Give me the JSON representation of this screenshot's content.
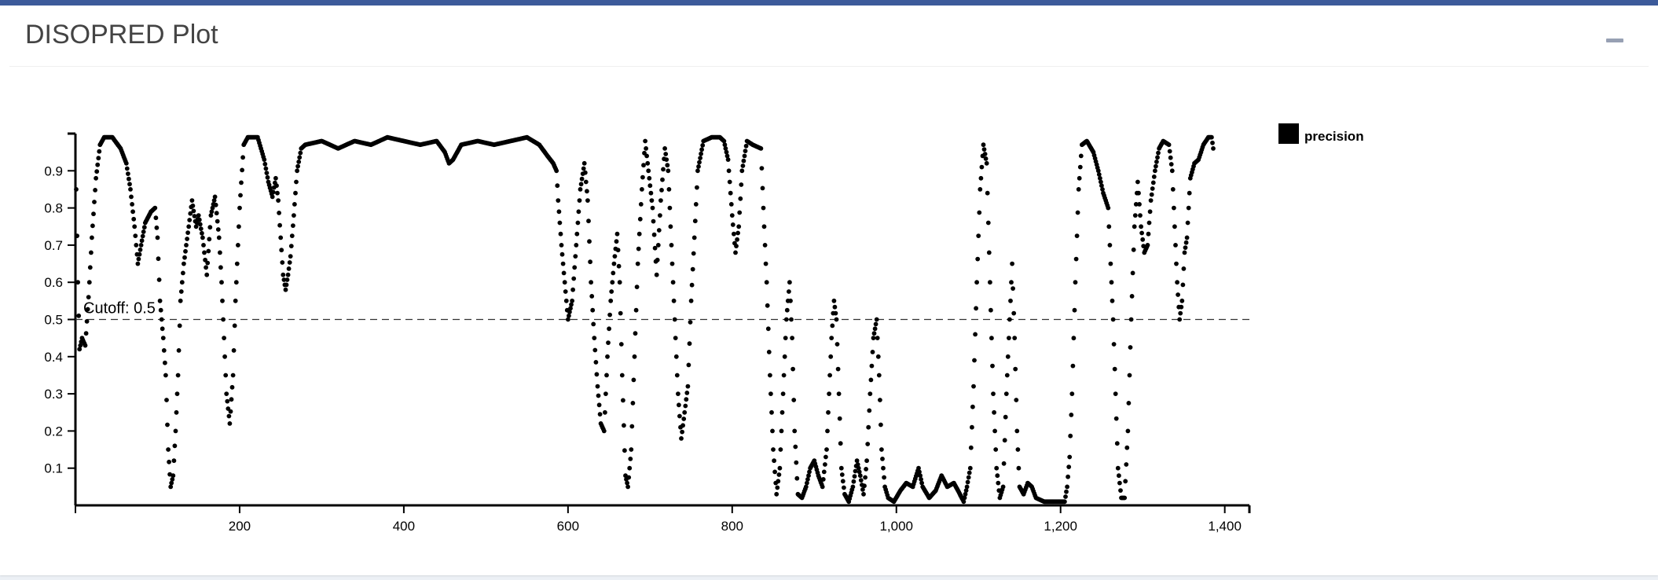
{
  "panel": {
    "title": "DISOPRED Plot",
    "collapse_icon": "minus-icon"
  },
  "chart_data": {
    "type": "scatter",
    "title": "",
    "xlabel": "",
    "ylabel": "",
    "xlim": [
      0,
      1430
    ],
    "ylim": [
      0,
      1
    ],
    "xticks": [
      0,
      200,
      400,
      600,
      800,
      1000,
      1200,
      1400
    ],
    "xtick_labels": [
      "",
      "200",
      "400",
      "600",
      "800",
      "1,000",
      "1,200",
      "1,400"
    ],
    "yticks": [
      0.1,
      0.2,
      0.3,
      0.4,
      0.5,
      0.6,
      0.7,
      0.8,
      0.9
    ],
    "ytick_labels": [
      "0.1",
      "0.2",
      "0.3",
      "0.4",
      "0.5",
      "0.6",
      "0.7",
      "0.8",
      "0.9"
    ],
    "cutoff": {
      "value": 0.5,
      "label": "Cutoff: 0.5"
    },
    "legend": {
      "position": "top-right",
      "entries": [
        {
          "name": "precision",
          "color": "#000000"
        }
      ]
    },
    "grid": false,
    "series": [
      {
        "name": "precision",
        "color": "#000000",
        "keypoints": [
          [
            1,
            0.85
          ],
          [
            3,
            0.6
          ],
          [
            5,
            0.42
          ],
          [
            8,
            0.45
          ],
          [
            12,
            0.43
          ],
          [
            16,
            0.56
          ],
          [
            20,
            0.72
          ],
          [
            25,
            0.88
          ],
          [
            30,
            0.97
          ],
          [
            35,
            0.99
          ],
          [
            45,
            0.99
          ],
          [
            55,
            0.96
          ],
          [
            62,
            0.92
          ],
          [
            67,
            0.85
          ],
          [
            72,
            0.75
          ],
          [
            76,
            0.65
          ],
          [
            80,
            0.7
          ],
          [
            85,
            0.76
          ],
          [
            92,
            0.79
          ],
          [
            97,
            0.8
          ],
          [
            100,
            0.72
          ],
          [
            103,
            0.55
          ],
          [
            107,
            0.45
          ],
          [
            110,
            0.35
          ],
          [
            113,
            0.15
          ],
          [
            116,
            0.05
          ],
          [
            119,
            0.08
          ],
          [
            122,
            0.2
          ],
          [
            125,
            0.35
          ],
          [
            128,
            0.55
          ],
          [
            132,
            0.65
          ],
          [
            138,
            0.75
          ],
          [
            142,
            0.82
          ],
          [
            147,
            0.75
          ],
          [
            150,
            0.78
          ],
          [
            155,
            0.72
          ],
          [
            160,
            0.62
          ],
          [
            165,
            0.78
          ],
          [
            170,
            0.83
          ],
          [
            175,
            0.72
          ],
          [
            178,
            0.6
          ],
          [
            181,
            0.45
          ],
          [
            184,
            0.3
          ],
          [
            188,
            0.22
          ],
          [
            192,
            0.35
          ],
          [
            195,
            0.55
          ],
          [
            200,
            0.8
          ],
          [
            205,
            0.97
          ],
          [
            210,
            0.99
          ],
          [
            222,
            0.99
          ],
          [
            230,
            0.93
          ],
          [
            235,
            0.87
          ],
          [
            240,
            0.83
          ],
          [
            244,
            0.88
          ],
          [
            247,
            0.82
          ],
          [
            250,
            0.72
          ],
          [
            253,
            0.62
          ],
          [
            256,
            0.58
          ],
          [
            259,
            0.62
          ],
          [
            262,
            0.67
          ],
          [
            266,
            0.78
          ],
          [
            270,
            0.9
          ],
          [
            275,
            0.96
          ],
          [
            280,
            0.97
          ],
          [
            300,
            0.98
          ],
          [
            320,
            0.96
          ],
          [
            340,
            0.98
          ],
          [
            360,
            0.97
          ],
          [
            380,
            0.99
          ],
          [
            400,
            0.98
          ],
          [
            420,
            0.97
          ],
          [
            440,
            0.98
          ],
          [
            450,
            0.95
          ],
          [
            455,
            0.92
          ],
          [
            460,
            0.93
          ],
          [
            470,
            0.97
          ],
          [
            490,
            0.98
          ],
          [
            510,
            0.97
          ],
          [
            530,
            0.98
          ],
          [
            550,
            0.99
          ],
          [
            565,
            0.97
          ],
          [
            575,
            0.94
          ],
          [
            582,
            0.92
          ],
          [
            586,
            0.9
          ],
          [
            588,
            0.82
          ],
          [
            592,
            0.7
          ],
          [
            596,
            0.6
          ],
          [
            600,
            0.5
          ],
          [
            605,
            0.55
          ],
          [
            610,
            0.7
          ],
          [
            615,
            0.85
          ],
          [
            620,
            0.92
          ],
          [
            624,
            0.82
          ],
          [
            628,
            0.6
          ],
          [
            632,
            0.45
          ],
          [
            636,
            0.32
          ],
          [
            640,
            0.22
          ],
          [
            644,
            0.2
          ],
          [
            648,
            0.4
          ],
          [
            652,
            0.55
          ],
          [
            656,
            0.65
          ],
          [
            660,
            0.73
          ],
          [
            663,
            0.6
          ],
          [
            666,
            0.35
          ],
          [
            670,
            0.08
          ],
          [
            673,
            0.05
          ],
          [
            677,
            0.15
          ],
          [
            681,
            0.4
          ],
          [
            685,
            0.65
          ],
          [
            690,
            0.85
          ],
          [
            694,
            0.98
          ],
          [
            698,
            0.9
          ],
          [
            703,
            0.8
          ],
          [
            708,
            0.62
          ],
          [
            713,
            0.82
          ],
          [
            718,
            0.96
          ],
          [
            722,
            0.9
          ],
          [
            726,
            0.7
          ],
          [
            730,
            0.5
          ],
          [
            734,
            0.3
          ],
          [
            738,
            0.18
          ],
          [
            742,
            0.25
          ],
          [
            746,
            0.32
          ],
          [
            750,
            0.55
          ],
          [
            754,
            0.72
          ],
          [
            758,
            0.9
          ],
          [
            765,
            0.98
          ],
          [
            775,
            0.99
          ],
          [
            785,
            0.99
          ],
          [
            790,
            0.98
          ],
          [
            795,
            0.93
          ],
          [
            800,
            0.78
          ],
          [
            804,
            0.68
          ],
          [
            808,
            0.75
          ],
          [
            812,
            0.9
          ],
          [
            818,
            0.98
          ],
          [
            825,
            0.97
          ],
          [
            835,
            0.96
          ],
          [
            838,
            0.8
          ],
          [
            842,
            0.6
          ],
          [
            846,
            0.35
          ],
          [
            850,
            0.15
          ],
          [
            854,
            0.03
          ],
          [
            858,
            0.1
          ],
          [
            862,
            0.3
          ],
          [
            866,
            0.5
          ],
          [
            870,
            0.6
          ],
          [
            873,
            0.45
          ],
          [
            876,
            0.2
          ],
          [
            880,
            0.03
          ],
          [
            885,
            0.02
          ],
          [
            890,
            0.05
          ],
          [
            895,
            0.1
          ],
          [
            900,
            0.12
          ],
          [
            905,
            0.08
          ],
          [
            910,
            0.05
          ],
          [
            915,
            0.15
          ],
          [
            918,
            0.3
          ],
          [
            921,
            0.45
          ],
          [
            924,
            0.55
          ],
          [
            927,
            0.5
          ],
          [
            930,
            0.3
          ],
          [
            933,
            0.1
          ],
          [
            937,
            0.03
          ],
          [
            942,
            0.01
          ],
          [
            947,
            0.05
          ],
          [
            952,
            0.12
          ],
          [
            956,
            0.08
          ],
          [
            960,
            0.03
          ],
          [
            964,
            0.12
          ],
          [
            968,
            0.3
          ],
          [
            972,
            0.45
          ],
          [
            976,
            0.5
          ],
          [
            979,
            0.35
          ],
          [
            982,
            0.15
          ],
          [
            986,
            0.05
          ],
          [
            990,
            0.02
          ],
          [
            997,
            0.01
          ],
          [
            1005,
            0.04
          ],
          [
            1012,
            0.06
          ],
          [
            1020,
            0.05
          ],
          [
            1027,
            0.1
          ],
          [
            1032,
            0.05
          ],
          [
            1040,
            0.02
          ],
          [
            1048,
            0.04
          ],
          [
            1055,
            0.08
          ],
          [
            1062,
            0.05
          ],
          [
            1070,
            0.06
          ],
          [
            1075,
            0.04
          ],
          [
            1082,
            0.01
          ],
          [
            1086,
            0.05
          ],
          [
            1090,
            0.1
          ],
          [
            1094,
            0.32
          ],
          [
            1098,
            0.6
          ],
          [
            1102,
            0.85
          ],
          [
            1106,
            0.97
          ],
          [
            1110,
            0.92
          ],
          [
            1114,
            0.6
          ],
          [
            1118,
            0.3
          ],
          [
            1122,
            0.1
          ],
          [
            1126,
            0.02
          ],
          [
            1130,
            0.05
          ],
          [
            1134,
            0.3
          ],
          [
            1138,
            0.5
          ],
          [
            1141,
            0.65
          ],
          [
            1144,
            0.45
          ],
          [
            1147,
            0.2
          ],
          [
            1150,
            0.05
          ],
          [
            1155,
            0.03
          ],
          [
            1160,
            0.06
          ],
          [
            1165,
            0.05
          ],
          [
            1170,
            0.02
          ],
          [
            1180,
            0.01
          ],
          [
            1195,
            0.01
          ],
          [
            1205,
            0.01
          ],
          [
            1208,
            0.05
          ],
          [
            1211,
            0.13
          ],
          [
            1214,
            0.3
          ],
          [
            1218,
            0.6
          ],
          [
            1222,
            0.85
          ],
          [
            1226,
            0.97
          ],
          [
            1232,
            0.98
          ],
          [
            1240,
            0.95
          ],
          [
            1246,
            0.9
          ],
          [
            1252,
            0.84
          ],
          [
            1258,
            0.8
          ],
          [
            1261,
            0.65
          ],
          [
            1264,
            0.5
          ],
          [
            1267,
            0.3
          ],
          [
            1270,
            0.1
          ],
          [
            1274,
            0.02
          ],
          [
            1278,
            0.02
          ],
          [
            1282,
            0.2
          ],
          [
            1286,
            0.5
          ],
          [
            1290,
            0.75
          ],
          [
            1294,
            0.87
          ],
          [
            1298,
            0.75
          ],
          [
            1302,
            0.68
          ],
          [
            1306,
            0.7
          ],
          [
            1310,
            0.82
          ],
          [
            1315,
            0.9
          ],
          [
            1320,
            0.96
          ],
          [
            1325,
            0.98
          ],
          [
            1332,
            0.97
          ],
          [
            1336,
            0.9
          ],
          [
            1339,
            0.75
          ],
          [
            1342,
            0.6
          ],
          [
            1345,
            0.5
          ],
          [
            1348,
            0.55
          ],
          [
            1351,
            0.68
          ],
          [
            1354,
            0.72
          ],
          [
            1358,
            0.88
          ],
          [
            1363,
            0.92
          ],
          [
            1368,
            0.93
          ],
          [
            1374,
            0.97
          ],
          [
            1380,
            0.99
          ],
          [
            1384,
            0.99
          ],
          [
            1386,
            0.96
          ]
        ]
      }
    ]
  }
}
